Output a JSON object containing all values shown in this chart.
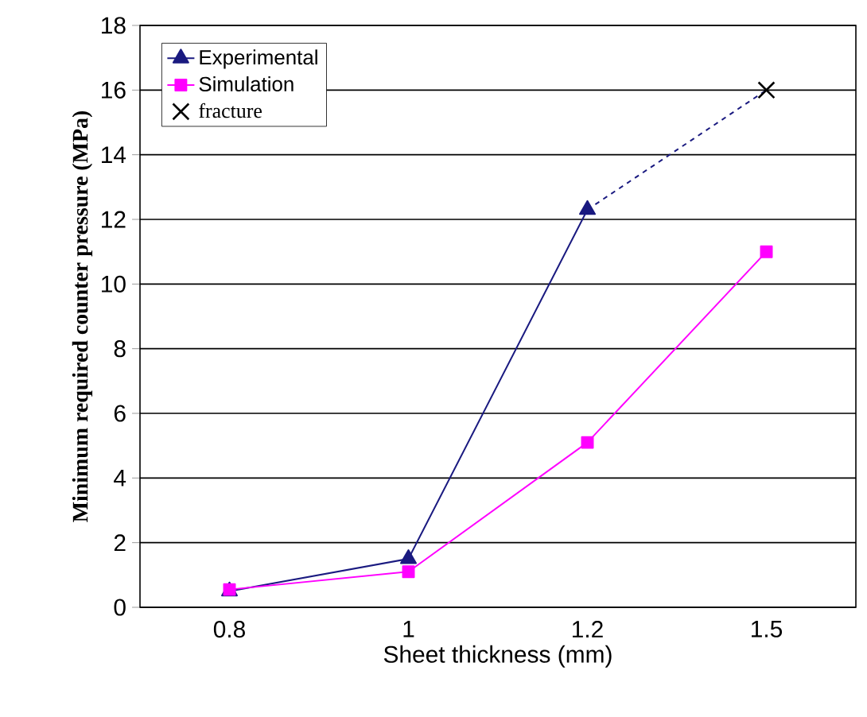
{
  "chart_data": {
    "type": "line",
    "xlabel": "Sheet thickness (mm)",
    "ylabel": "Minimum required counter pressure (MPa)",
    "categories": [
      "0.8",
      "1",
      "1.2",
      "1.5"
    ],
    "series": [
      {
        "name": "Experimental",
        "color": "#1a1a80",
        "values": [
          0.5,
          1.5,
          12.3,
          null
        ],
        "marker": "triangle",
        "line_style": "solid"
      },
      {
        "color": "#1a1a80",
        "values": [
          null,
          null,
          12.3,
          16
        ],
        "marker": "none",
        "line_style": "dashed"
      },
      {
        "name": "Simulation",
        "color": "#ff00ff",
        "values": [
          0.55,
          1.1,
          5.1,
          11.0
        ],
        "marker": "square",
        "line_style": "solid"
      },
      {
        "name": "fracture",
        "type": "scatter",
        "color": "#000000",
        "values": [
          null,
          null,
          null,
          16
        ],
        "marker": "cross"
      }
    ],
    "ylim": [
      0,
      18
    ],
    "yticks": [
      0,
      2,
      4,
      6,
      8,
      10,
      12,
      14,
      16,
      18
    ],
    "grid": "y",
    "legend": "top left"
  }
}
